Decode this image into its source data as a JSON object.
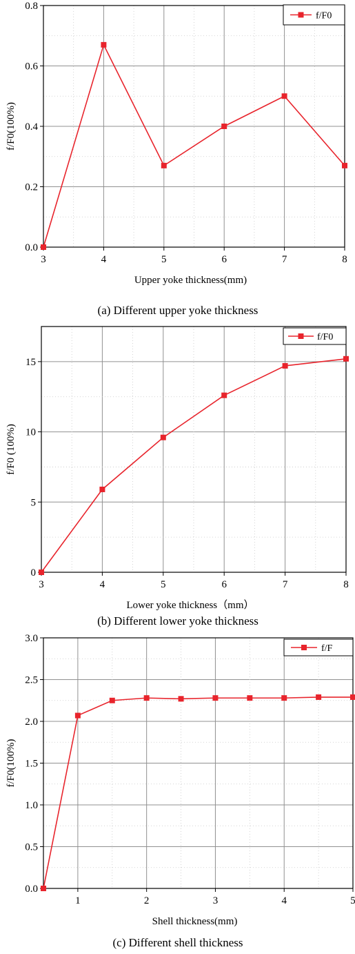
{
  "colors": {
    "series": "#e8242c",
    "grid": "#909090",
    "minor_grid": "#c8c8c8",
    "axis": "#000000"
  },
  "chart_data": [
    {
      "type": "line",
      "caption": "(a) Different upper yoke thickness",
      "xlabel": "Upper yoke thickness(mm)",
      "ylabel": "f/F0(100%)",
      "x": [
        3,
        4,
        5,
        6,
        7,
        8
      ],
      "xticks": [
        3,
        4,
        5,
        6,
        7,
        8
      ],
      "xlim": [
        3,
        8
      ],
      "yticks": [
        0.0,
        0.2,
        0.4,
        0.6,
        0.8
      ],
      "ytick_labels": [
        "0.0",
        "0.2",
        "0.4",
        "0.6",
        "0.8"
      ],
      "ylim": [
        0,
        0.8
      ],
      "series": [
        {
          "name": "f/F0",
          "values": [
            0.0,
            0.67,
            0.27,
            0.4,
            0.5,
            0.27
          ]
        }
      ],
      "grid": true,
      "legend": "top-right"
    },
    {
      "type": "line",
      "caption": "(b) Different lower yoke thickness",
      "xlabel": "Lower yoke thickness（mm）",
      "ylabel": "f/F0 (100%)",
      "x": [
        3,
        4,
        5,
        6,
        7,
        8
      ],
      "xticks": [
        3,
        4,
        5,
        6,
        7,
        8
      ],
      "xlim": [
        3,
        8
      ],
      "yticks": [
        0,
        5,
        10,
        15
      ],
      "ytick_labels": [
        "0",
        "5",
        "10",
        "15"
      ],
      "ylim": [
        0,
        17.5
      ],
      "series": [
        {
          "name": "f/F0",
          "values": [
            0.0,
            5.9,
            9.6,
            12.6,
            14.7,
            15.2
          ]
        }
      ],
      "grid": true,
      "legend": "top-right"
    },
    {
      "type": "line",
      "caption": "(c) Different shell thickness",
      "xlabel": "Shell thickness(mm)",
      "ylabel": "f/F0(100%)",
      "x": [
        0.5,
        1,
        1.5,
        2,
        2.5,
        3,
        3.5,
        4,
        4.5,
        5
      ],
      "xticks": [
        1,
        2,
        3,
        4,
        5
      ],
      "xlim": [
        0.5,
        5
      ],
      "yticks": [
        0.0,
        0.5,
        1.0,
        1.5,
        2.0,
        2.5,
        3.0
      ],
      "ytick_labels": [
        "0.0",
        "0.5",
        "1.0",
        "1.5",
        "2.0",
        "2.5",
        "3.0"
      ],
      "ylim": [
        0,
        3.0
      ],
      "series": [
        {
          "name": "f/F",
          "values": [
            0.0,
            2.07,
            2.25,
            2.28,
            2.27,
            2.28,
            2.28,
            2.28,
            2.29,
            2.29
          ]
        }
      ],
      "grid": true,
      "legend": "top-right"
    }
  ]
}
